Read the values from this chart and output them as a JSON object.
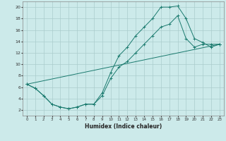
{
  "xlabel": "Humidex (Indice chaleur)",
  "bg_color": "#cceaea",
  "grid_color": "#aacccc",
  "line_color": "#1a7a6e",
  "xlim": [
    -0.5,
    23.5
  ],
  "ylim": [
    1,
    21
  ],
  "xticks": [
    0,
    1,
    2,
    3,
    4,
    5,
    6,
    7,
    8,
    9,
    10,
    11,
    12,
    13,
    14,
    15,
    16,
    17,
    18,
    19,
    20,
    21,
    22,
    23
  ],
  "yticks": [
    2,
    4,
    6,
    8,
    10,
    12,
    14,
    16,
    18,
    20
  ],
  "line1_x": [
    0,
    1,
    2,
    3,
    4,
    5,
    6,
    7,
    8,
    9,
    10,
    11,
    12,
    13,
    14,
    15,
    16,
    17,
    18,
    19,
    20,
    21,
    22,
    23
  ],
  "line1_y": [
    6.5,
    5.8,
    4.5,
    3.0,
    2.5,
    2.2,
    2.5,
    3.0,
    3.0,
    5.0,
    8.5,
    11.5,
    13.0,
    15.0,
    16.5,
    18.0,
    20.0,
    20.0,
    20.2,
    18.0,
    14.5,
    13.8,
    13.0,
    13.5
  ],
  "line2_x": [
    0,
    1,
    2,
    3,
    4,
    5,
    6,
    7,
    8,
    9,
    10,
    11,
    12,
    13,
    14,
    15,
    16,
    17,
    18,
    19,
    20,
    21,
    22,
    23
  ],
  "line2_y": [
    6.5,
    5.8,
    4.5,
    3.0,
    2.5,
    2.2,
    2.5,
    3.0,
    3.0,
    4.5,
    7.5,
    9.5,
    10.5,
    12.0,
    13.5,
    15.0,
    16.5,
    17.0,
    18.5,
    14.5,
    13.0,
    13.5,
    13.5,
    13.5
  ],
  "line3_x": [
    0,
    23
  ],
  "line3_y": [
    6.5,
    13.5
  ]
}
